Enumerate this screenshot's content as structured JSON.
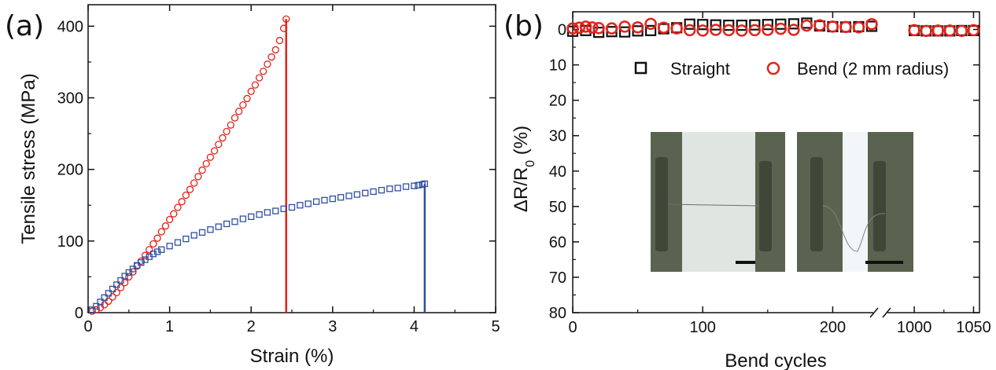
{
  "figure": {
    "panel_a_label": "(a)",
    "panel_b_label": "(b)"
  },
  "colors": {
    "red": "#e2231a",
    "blue": "#2f4fa0",
    "black": "#111111"
  },
  "chart_data": [
    {
      "type": "scatter",
      "panel": "(a)",
      "xlabel": "Strain (%)",
      "ylabel": "Tensile stress (MPa)",
      "xlim": [
        0,
        5
      ],
      "ylim": [
        0,
        430
      ],
      "xticks": [
        "0",
        "1",
        "2",
        "3",
        "4",
        "5"
      ],
      "yticks": [
        "0",
        "100",
        "200",
        "300",
        "400"
      ],
      "grid": false,
      "series": [
        {
          "marker": "circle",
          "color": "#e2231a",
          "fracture_line_x": 2.43,
          "x": [
            0.05,
            0.1,
            0.15,
            0.2,
            0.25,
            0.3,
            0.35,
            0.4,
            0.45,
            0.5,
            0.55,
            0.6,
            0.65,
            0.7,
            0.75,
            0.8,
            0.85,
            0.9,
            0.95,
            1.0,
            1.05,
            1.1,
            1.15,
            1.2,
            1.25,
            1.3,
            1.35,
            1.4,
            1.45,
            1.5,
            1.55,
            1.6,
            1.65,
            1.7,
            1.75,
            1.8,
            1.85,
            1.9,
            1.95,
            2.0,
            2.05,
            2.1,
            2.15,
            2.2,
            2.25,
            2.3,
            2.35,
            2.4,
            2.43
          ],
          "y": [
            2,
            4,
            7,
            11,
            16,
            22,
            28,
            35,
            42,
            50,
            57,
            65,
            72,
            80,
            88,
            96,
            104,
            113,
            121,
            130,
            138,
            147,
            155,
            164,
            172,
            181,
            190,
            199,
            208,
            217,
            226,
            235,
            244,
            253,
            262,
            272,
            281,
            290,
            299,
            309,
            318,
            328,
            337,
            347,
            357,
            367,
            380,
            397,
            410
          ]
        },
        {
          "marker": "square",
          "color": "#2f4fa0",
          "fracture_line_x": 4.13,
          "x": [
            0.05,
            0.1,
            0.15,
            0.2,
            0.25,
            0.3,
            0.35,
            0.4,
            0.45,
            0.5,
            0.55,
            0.6,
            0.65,
            0.7,
            0.75,
            0.8,
            0.85,
            0.9,
            1.0,
            1.1,
            1.2,
            1.3,
            1.4,
            1.5,
            1.6,
            1.7,
            1.8,
            1.9,
            2.0,
            2.1,
            2.2,
            2.3,
            2.4,
            2.5,
            2.6,
            2.7,
            2.8,
            2.9,
            3.0,
            3.1,
            3.2,
            3.3,
            3.4,
            3.5,
            3.6,
            3.7,
            3.8,
            3.9,
            4.0,
            4.05,
            4.1,
            4.13
          ],
          "y": [
            4,
            9,
            15,
            21,
            27,
            33,
            39,
            45,
            51,
            56,
            61,
            66,
            70,
            74,
            78,
            82,
            85,
            88,
            93,
            98,
            103,
            108,
            112,
            116,
            120,
            124,
            127,
            131,
            134,
            137,
            140,
            142,
            145,
            147,
            150,
            152,
            155,
            157,
            159,
            161,
            163,
            165,
            167,
            169,
            171,
            173,
            174,
            176,
            177,
            178,
            179,
            180
          ]
        }
      ]
    },
    {
      "type": "scatter",
      "panel": "(b)",
      "xlabel": "Bend cycles",
      "ylabel": "ΔR/R",
      "ylabel_subscript": "0",
      "ylabel_unit": " (%)",
      "y_axis_inverted": true,
      "ylim": [
        80,
        -5
      ],
      "x_axis_broken": true,
      "xticks": [
        "0",
        "100",
        "200",
        "1000",
        "1050"
      ],
      "yticks": [
        "0",
        "10",
        "20",
        "30",
        "40",
        "50",
        "60",
        "70",
        "80"
      ],
      "legend_position": "top-right",
      "grid": false,
      "series": [
        {
          "name": "Straight",
          "marker": "square",
          "color": "#111111",
          "x_first_segment": [
            0,
            10,
            20,
            30,
            40,
            50,
            60,
            70,
            80,
            90,
            100,
            110,
            120,
            130,
            140,
            150,
            160,
            170,
            180,
            190,
            200,
            210,
            220,
            230
          ],
          "y_first_segment": [
            0.5,
            0.3,
            0.8,
            0.6,
            0.7,
            0.4,
            0.3,
            -0.2,
            -0.5,
            -1.5,
            -1.4,
            -1.3,
            -1.2,
            -1.2,
            -1.3,
            -1.4,
            -1.5,
            -1.6,
            -1.8,
            -1.0,
            -0.8,
            -0.7,
            -0.8,
            -0.9
          ],
          "x_second_segment": [
            1000,
            1010,
            1020,
            1030,
            1040,
            1050
          ],
          "y_second_segment": [
            0.3,
            0.4,
            0.4,
            0.4,
            0.3,
            0.3
          ]
        },
        {
          "name": "Bend (2 mm radius)",
          "marker": "circle",
          "color": "#e2231a",
          "x_first_segment": [
            0,
            5,
            10,
            15,
            20,
            30,
            40,
            50,
            60,
            70,
            80,
            90,
            100,
            110,
            120,
            130,
            140,
            150,
            160,
            170,
            180,
            190,
            200,
            210,
            220,
            230
          ],
          "y_first_segment": [
            -0.3,
            -0.5,
            -0.8,
            -0.6,
            -0.4,
            -0.3,
            -0.8,
            -0.6,
            -1.6,
            -0.5,
            -0.3,
            0.2,
            0.3,
            0.1,
            0.2,
            0.3,
            0.2,
            0.1,
            -0.2,
            0.1,
            -1.1,
            -1.2,
            -0.8,
            -0.7,
            -0.6,
            -1.5
          ],
          "x_second_segment": [
            1000,
            1010,
            1020,
            1030,
            1040,
            1050
          ],
          "y_second_segment": [
            0.2,
            0.4,
            0.3,
            0.3,
            0.4,
            0.2
          ]
        }
      ]
    }
  ]
}
